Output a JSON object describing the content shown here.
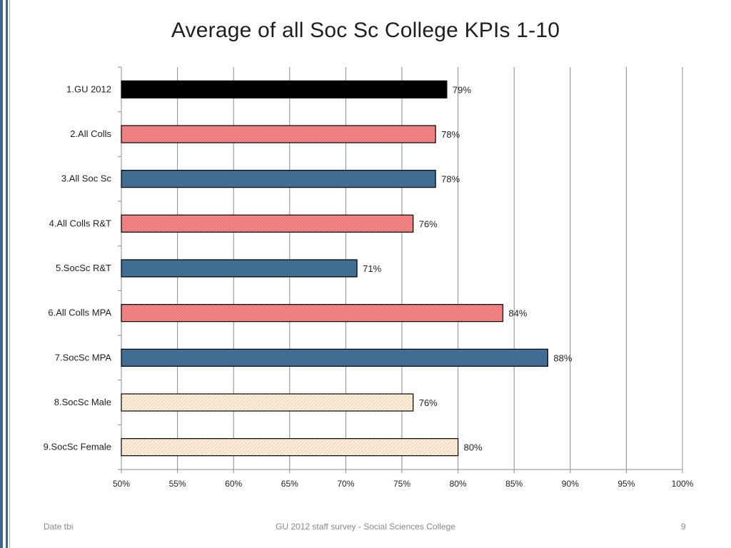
{
  "slide": {
    "title": "Average of all Soc Sc College KPIs 1-10",
    "footer_left": "Date tbi",
    "footer_center": "GU 2012 staff survey -  Social Sciences College",
    "page_number": "9"
  },
  "colors": {
    "black": "#000000",
    "pink": "#f08080",
    "blue": "#416d95",
    "cream": "#fbe5cd",
    "accent": "#3f6593"
  },
  "chart_data": {
    "type": "bar",
    "orientation": "horizontal",
    "title": "Average of all Soc Sc College KPIs 1-10",
    "xlabel": "",
    "ylabel": "",
    "xlim": [
      50,
      100
    ],
    "grid": true,
    "x_ticks": [
      "50%",
      "55%",
      "60%",
      "65%",
      "70%",
      "75%",
      "80%",
      "85%",
      "90%",
      "95%",
      "100%"
    ],
    "categories": [
      "1.GU 2012",
      "2.All Colls",
      "3.All Soc Sc",
      "4.All Colls R&T",
      "5.SocSc R&T",
      "6.All Colls MPA",
      "7.SocSc MPA",
      "8.SocSc Male",
      "9.SocSc Female"
    ],
    "values": [
      79,
      78,
      78,
      76,
      71,
      84,
      88,
      76,
      80
    ],
    "value_labels": [
      "79%",
      "78%",
      "78%",
      "76%",
      "71%",
      "84%",
      "88%",
      "76%",
      "80%"
    ],
    "bar_colors": [
      "black",
      "pink",
      "blue",
      "pink",
      "blue",
      "pink",
      "blue",
      "cream",
      "cream"
    ]
  }
}
